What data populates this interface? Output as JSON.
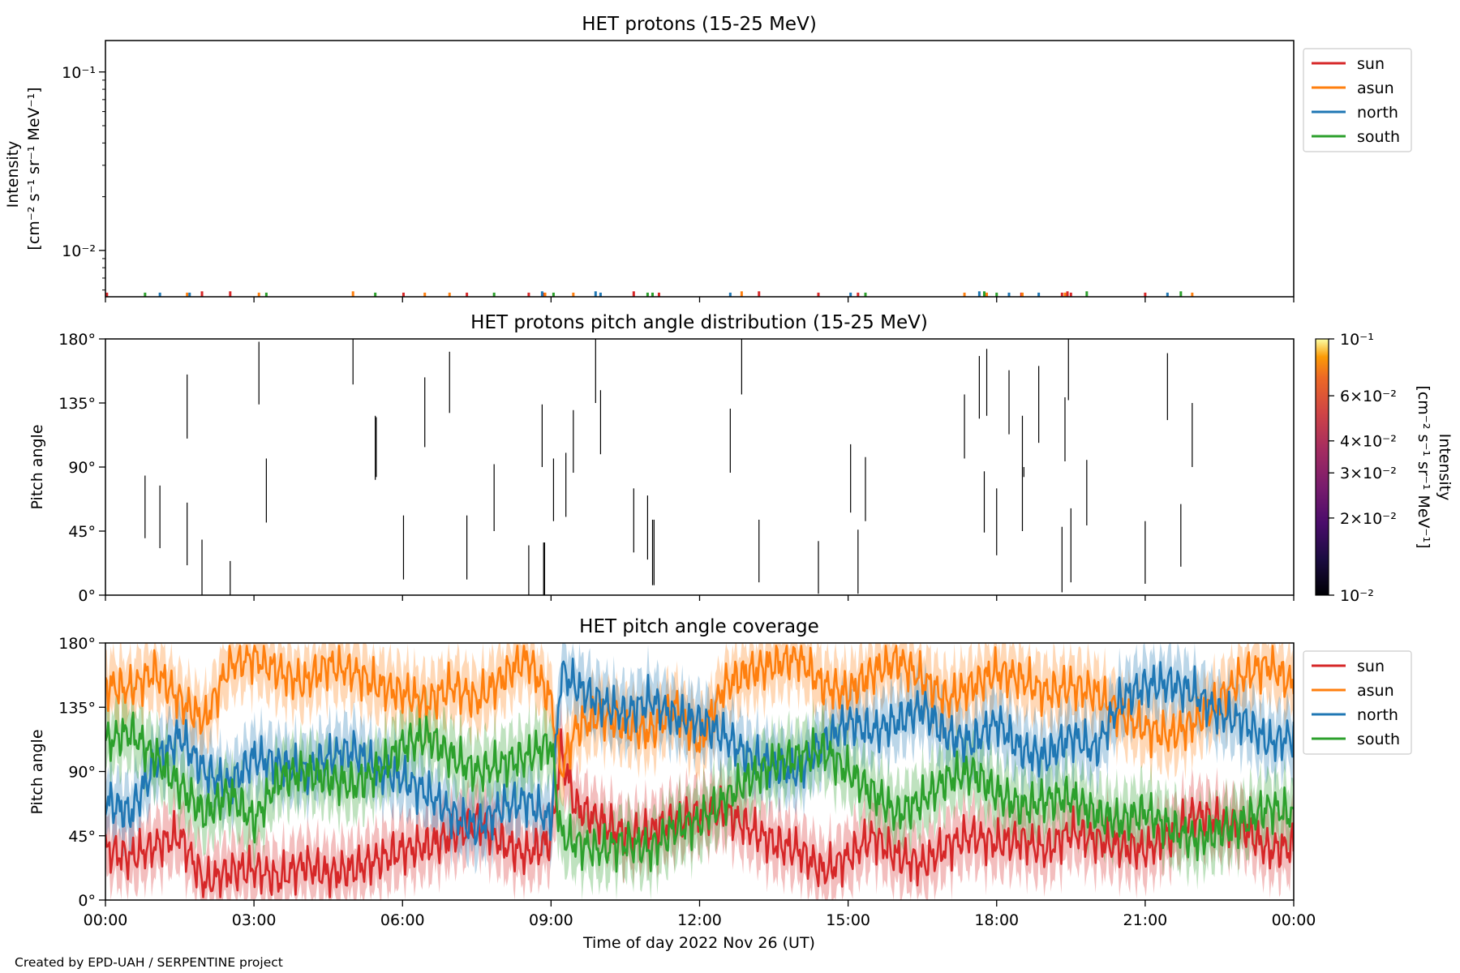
{
  "footer": "Created by EPD-UAH / SERPENTINE project",
  "colors": {
    "sun": "#d62728",
    "asun": "#ff7f0e",
    "north": "#1f77b4",
    "south": "#2ca02c"
  },
  "x_axis": {
    "label": "Time of day 2022 Nov 26 (UT)",
    "range_hours": [
      0,
      24
    ],
    "ticks_hours": [
      0,
      3,
      6,
      9,
      12,
      15,
      18,
      21,
      24
    ],
    "tick_labels": [
      "00:00",
      "03:00",
      "06:00",
      "09:00",
      "12:00",
      "15:00",
      "18:00",
      "21:00",
      "00:00"
    ]
  },
  "chart_data": [
    {
      "type": "line",
      "title": "HET protons (15-25 MeV)",
      "ylabel": [
        "Intensity",
        "[cm⁻² s⁻¹ sr⁻¹ MeV⁻¹]"
      ],
      "yscale": "log",
      "ylim": [
        0.0055,
        0.15
      ],
      "yticks": [
        0.01,
        0.1
      ],
      "ytick_labels": [
        "10⁻²",
        "10⁻¹"
      ],
      "legend": {
        "placement": "outside-top-right",
        "entries": [
          "sun",
          "asun",
          "north",
          "south"
        ]
      },
      "series": [
        {
          "name": "sun",
          "color": "#d62728",
          "x": [
            0.03,
            1.95,
            2.52,
            6.02,
            7.3,
            8.55,
            8.85,
            10.67,
            11.18,
            13.2,
            14.4,
            15.2,
            18.5,
            19.32,
            19.43,
            19.5,
            21.0
          ],
          "y": [
            0.0058,
            0.0059,
            0.0059,
            0.0058,
            0.0058,
            0.0058,
            0.0058,
            0.0059,
            0.0058,
            0.0059,
            0.0058,
            0.0058,
            0.0058,
            0.0058,
            0.0059,
            0.0058,
            0.0058
          ]
        },
        {
          "name": "asun",
          "color": "#ff7f0e",
          "x": [
            1.65,
            3.1,
            5.0,
            6.45,
            6.95,
            8.88,
            9.45,
            12.85,
            17.35,
            17.8,
            18.52,
            19.38,
            21.95
          ],
          "y": [
            0.0058,
            0.0058,
            0.0059,
            0.0058,
            0.0058,
            0.0058,
            0.0058,
            0.0059,
            0.0058,
            0.0058,
            0.0058,
            0.0058,
            0.0058
          ]
        },
        {
          "name": "north",
          "color": "#1f77b4",
          "x": [
            1.1,
            1.7,
            8.82,
            9.9,
            10.0,
            12.62,
            15.05,
            17.65,
            18.25,
            18.85,
            21.45
          ],
          "y": [
            0.0058,
            0.0058,
            0.0059,
            0.0059,
            0.0058,
            0.0058,
            0.0058,
            0.0059,
            0.0058,
            0.0058,
            0.0058
          ]
        },
        {
          "name": "south",
          "color": "#2ca02c",
          "x": [
            0.8,
            3.25,
            5.45,
            7.85,
            9.05,
            10.95,
            11.05,
            15.35,
            17.75,
            18.0,
            19.82,
            21.72
          ],
          "y": [
            0.0058,
            0.0058,
            0.0058,
            0.0058,
            0.0058,
            0.0058,
            0.0058,
            0.0058,
            0.0059,
            0.0058,
            0.0059,
            0.0059
          ]
        }
      ]
    },
    {
      "type": "heatmap",
      "title": "HET protons pitch angle distribution (15-25 MeV)",
      "ylabel": "Pitch angle",
      "ylim": [
        0,
        180
      ],
      "yticks": [
        0,
        45,
        90,
        135,
        180
      ],
      "ytick_labels": [
        "0°",
        "45°",
        "90°",
        "135°",
        "180°"
      ],
      "colorbar": {
        "label": [
          "Intensity",
          "[cm⁻² s⁻¹ sr⁻¹ MeV⁻¹]"
        ],
        "scale": "log",
        "range": [
          0.01,
          0.1
        ],
        "ticks": [
          0.01,
          0.02,
          0.03,
          0.04,
          0.06,
          0.1
        ],
        "tick_labels": [
          "10⁻²",
          "2×10⁻²",
          "3×10⁻²",
          "4×10⁻²",
          "6×10⁻²",
          "10⁻¹"
        ],
        "colormap": "inferno"
      },
      "segments": [
        [
          0.8,
          40,
          84
        ],
        [
          1.1,
          33,
          77
        ],
        [
          1.65,
          110,
          155
        ],
        [
          1.65,
          21,
          65
        ],
        [
          1.95,
          0,
          39
        ],
        [
          2.52,
          0,
          24
        ],
        [
          3.1,
          134,
          178
        ],
        [
          3.25,
          51,
          96
        ],
        [
          5.0,
          148,
          180
        ],
        [
          5.45,
          81,
          126
        ],
        [
          5.47,
          83,
          125
        ],
        [
          6.02,
          11,
          56
        ],
        [
          6.45,
          104,
          153
        ],
        [
          6.95,
          128,
          171
        ],
        [
          7.3,
          11,
          56
        ],
        [
          7.85,
          45,
          92
        ],
        [
          8.55,
          0,
          35
        ],
        [
          8.85,
          0,
          37
        ],
        [
          8.87,
          0,
          37
        ],
        [
          8.82,
          90,
          134
        ],
        [
          9.05,
          52,
          96
        ],
        [
          9.3,
          55,
          100
        ],
        [
          9.45,
          86,
          130
        ],
        [
          9.9,
          135,
          180
        ],
        [
          10.0,
          99,
          144
        ],
        [
          10.67,
          30,
          75
        ],
        [
          10.95,
          25,
          70
        ],
        [
          11.05,
          7,
          53
        ],
        [
          11.08,
          7,
          53
        ],
        [
          12.62,
          86,
          131
        ],
        [
          12.85,
          141,
          180
        ],
        [
          13.2,
          9,
          53
        ],
        [
          14.4,
          1,
          38
        ],
        [
          15.05,
          58,
          106
        ],
        [
          15.2,
          1,
          46
        ],
        [
          15.35,
          52,
          97
        ],
        [
          17.35,
          96,
          141
        ],
        [
          17.65,
          124,
          168
        ],
        [
          17.75,
          44,
          87
        ],
        [
          17.8,
          126,
          173
        ],
        [
          18.0,
          28,
          75
        ],
        [
          18.25,
          113,
          158
        ],
        [
          18.52,
          45,
          126
        ],
        [
          18.55,
          83,
          90
        ],
        [
          18.85,
          107,
          161
        ],
        [
          19.32,
          2,
          48
        ],
        [
          19.38,
          94,
          139
        ],
        [
          19.45,
          137,
          180
        ],
        [
          19.5,
          9,
          61
        ],
        [
          19.82,
          49,
          95
        ],
        [
          21.0,
          8,
          52
        ],
        [
          21.45,
          123,
          170
        ],
        [
          21.72,
          20,
          64
        ],
        [
          21.95,
          90,
          135
        ]
      ]
    },
    {
      "type": "area",
      "title": "HET pitch angle coverage",
      "ylabel": "Pitch angle",
      "ylim": [
        0,
        180
      ],
      "yticks": [
        0,
        45,
        90,
        135,
        180
      ],
      "ytick_labels": [
        "0°",
        "45°",
        "90°",
        "135°",
        "180°"
      ],
      "legend": {
        "placement": "outside-top-right",
        "entries": [
          "sun",
          "asun",
          "north",
          "south"
        ]
      },
      "band_halfwidth_deg": 21,
      "series": [
        {
          "name": "sun",
          "color": "#d62728",
          "x": [
            0,
            0.5,
            1,
            1.5,
            2,
            2.5,
            3,
            3.5,
            4,
            4.5,
            5,
            5.5,
            6,
            6.5,
            7,
            7.5,
            8,
            8.5,
            9,
            9.2,
            9.5,
            10,
            10.5,
            11,
            11.5,
            12,
            12.5,
            13,
            13.5,
            14,
            14.5,
            15,
            15.5,
            16,
            16.5,
            17,
            17.5,
            18,
            18.5,
            19,
            19.5,
            20,
            20.5,
            21,
            21.5,
            22,
            22.5,
            23,
            23.5,
            24
          ],
          "y": [
            35,
            30,
            38,
            45,
            12,
            20,
            22,
            15,
            25,
            18,
            22,
            28,
            35,
            38,
            45,
            55,
            40,
            32,
            42,
            105,
            65,
            55,
            45,
            48,
            55,
            60,
            62,
            50,
            40,
            35,
            20,
            30,
            45,
            30,
            25,
            38,
            45,
            40,
            42,
            35,
            48,
            42,
            38,
            35,
            45,
            60,
            55,
            50,
            35,
            38
          ]
        },
        {
          "name": "asun",
          "color": "#ff7f0e",
          "x": [
            0,
            0.5,
            1,
            1.5,
            2,
            2.5,
            3,
            3.5,
            4,
            4.5,
            5,
            5.5,
            6,
            6.5,
            7,
            7.5,
            8,
            8.5,
            9,
            9.2,
            9.5,
            10,
            10.5,
            11,
            11.5,
            12,
            12.5,
            13,
            13.5,
            14,
            14.5,
            15,
            15.5,
            16,
            16.5,
            17,
            17.5,
            18,
            18.5,
            19,
            19.5,
            20,
            20.5,
            21,
            21.5,
            22,
            22.5,
            23,
            23.5,
            24
          ],
          "y": [
            150,
            148,
            160,
            140,
            125,
            165,
            170,
            160,
            152,
            165,
            160,
            150,
            145,
            138,
            150,
            140,
            155,
            170,
            140,
            90,
            120,
            130,
            122,
            118,
            135,
            110,
            150,
            160,
            165,
            170,
            150,
            145,
            160,
            168,
            155,
            140,
            150,
            160,
            155,
            145,
            150,
            145,
            130,
            120,
            115,
            125,
            140,
            158,
            165,
            150
          ]
        },
        {
          "name": "north",
          "color": "#1f77b4",
          "x": [
            0,
            0.5,
            1,
            1.5,
            2,
            2.5,
            3,
            3.5,
            4,
            4.5,
            5,
            5.5,
            6,
            6.5,
            7,
            7.5,
            8,
            8.5,
            9,
            9.2,
            9.5,
            10,
            10.5,
            11,
            11.5,
            12,
            12.5,
            13,
            13.5,
            14,
            14.5,
            15,
            15.5,
            16,
            16.5,
            17,
            17.5,
            18,
            18.5,
            19,
            19.5,
            20,
            20.5,
            21,
            21.5,
            22,
            22.5,
            23,
            23.5,
            24
          ],
          "y": [
            70,
            60,
            95,
            115,
            90,
            80,
            100,
            95,
            90,
            100,
            105,
            92,
            85,
            75,
            60,
            50,
            65,
            70,
            55,
            160,
            150,
            138,
            130,
            140,
            128,
            125,
            115,
            100,
            95,
            90,
            110,
            125,
            118,
            125,
            135,
            115,
            110,
            125,
            105,
            100,
            115,
            105,
            140,
            150,
            152,
            145,
            130,
            125,
            110,
            115
          ]
        },
        {
          "name": "south",
          "color": "#2ca02c",
          "x": [
            0,
            0.5,
            1,
            1.5,
            2,
            2.5,
            3,
            3.5,
            4,
            4.5,
            5,
            5.5,
            6,
            6.5,
            7,
            7.5,
            8,
            8.5,
            9,
            9.2,
            9.5,
            10,
            10.5,
            11,
            11.5,
            12,
            12.5,
            13,
            13.5,
            14,
            14.5,
            15,
            15.5,
            16,
            16.5,
            17,
            17.5,
            18,
            18.5,
            19,
            19.5,
            20,
            20.5,
            21,
            21.5,
            22,
            22.5,
            23,
            23.5,
            24
          ],
          "y": [
            110,
            118,
            100,
            80,
            60,
            75,
            55,
            85,
            90,
            85,
            80,
            90,
            108,
            115,
            100,
            90,
            95,
            100,
            110,
            45,
            40,
            35,
            40,
            35,
            50,
            55,
            70,
            85,
            95,
            100,
            105,
            90,
            75,
            60,
            70,
            85,
            90,
            75,
            65,
            70,
            72,
            60,
            55,
            62,
            50,
            42,
            48,
            55,
            65,
            60
          ]
        }
      ]
    }
  ]
}
